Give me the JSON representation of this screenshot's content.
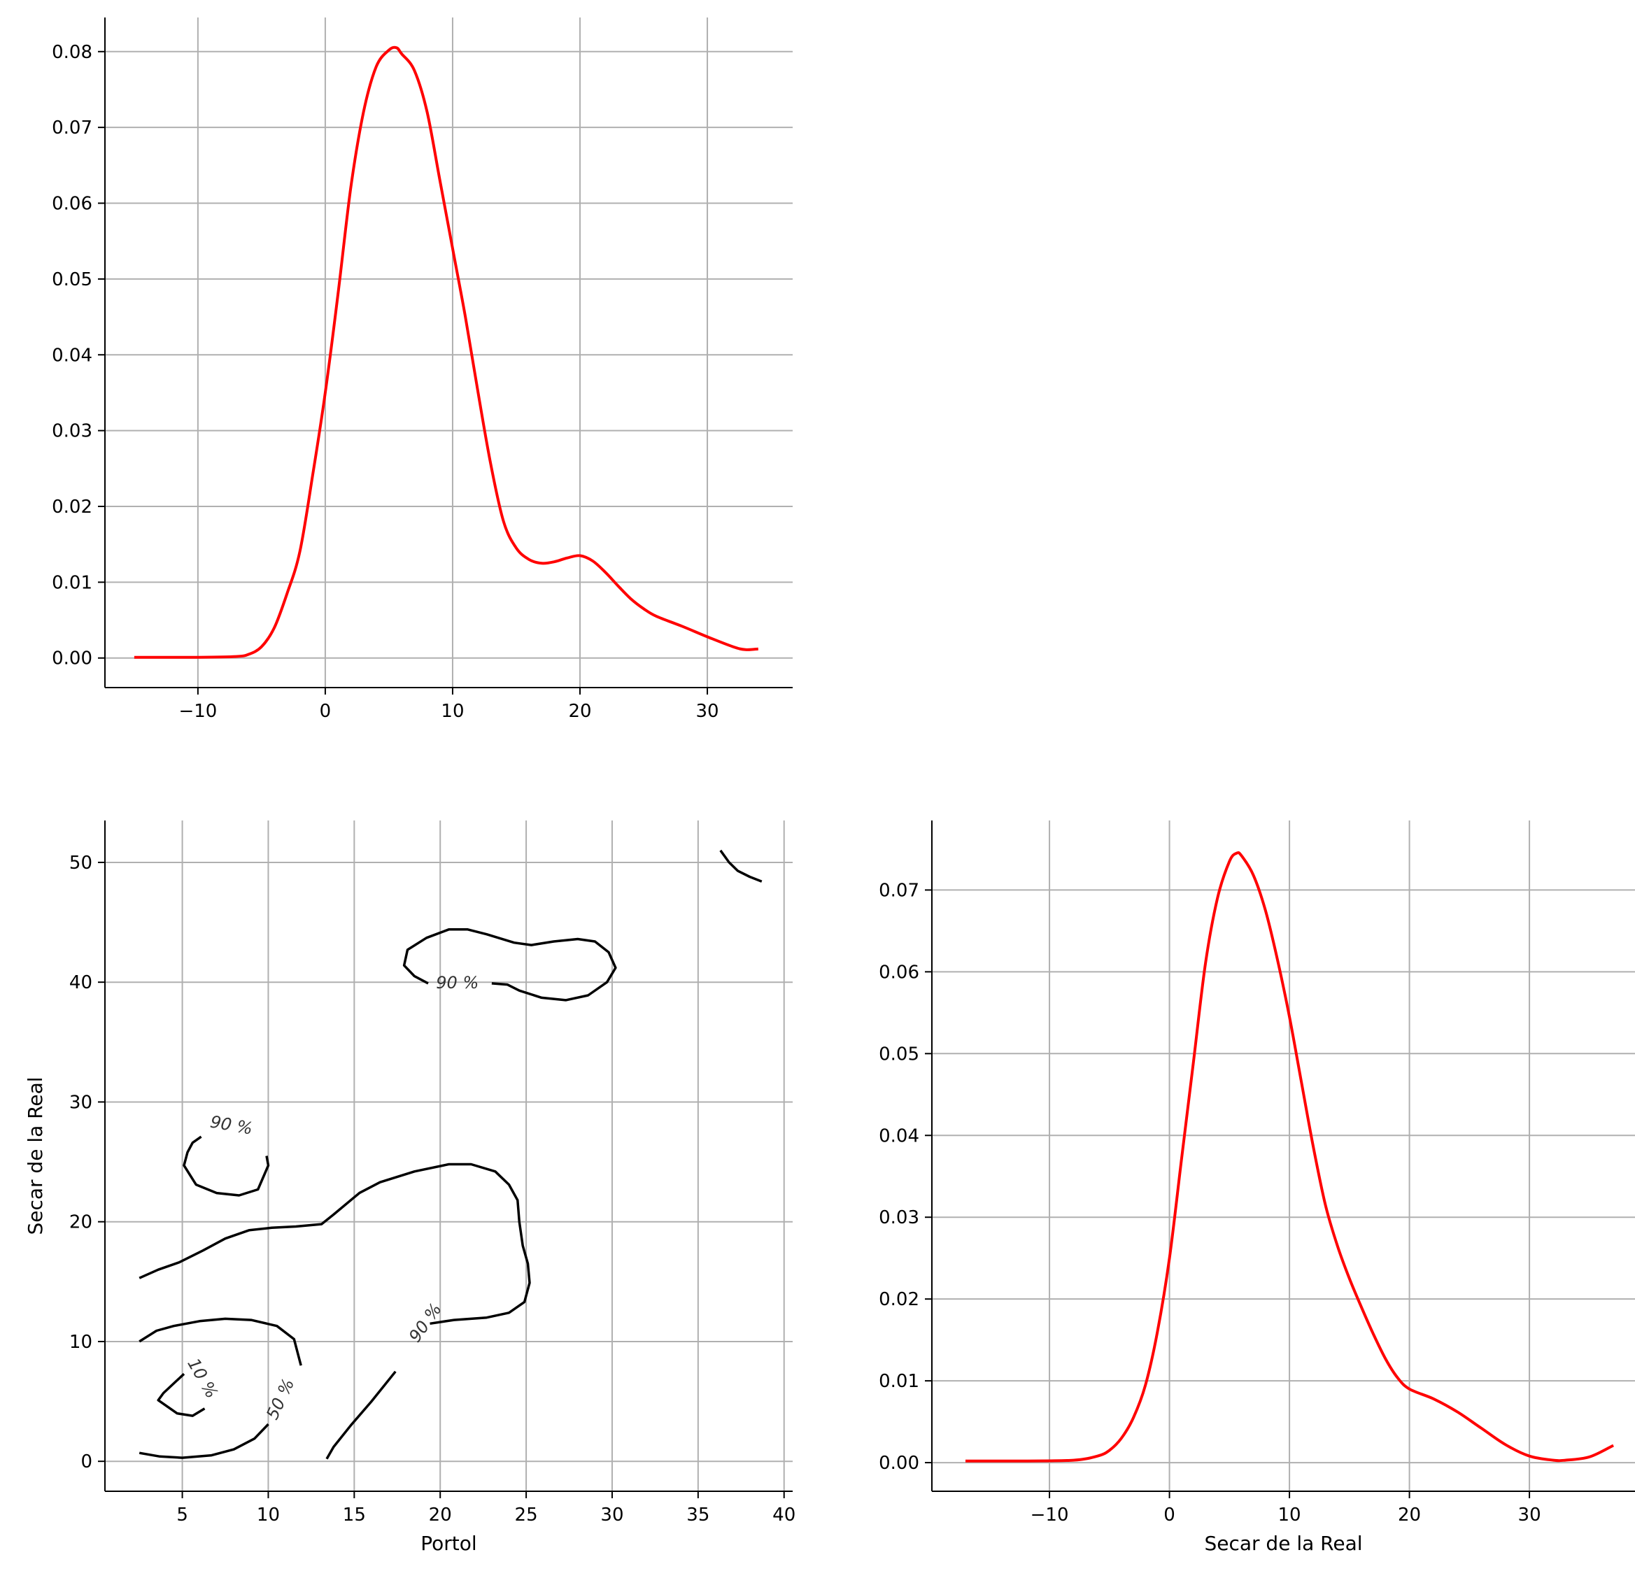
{
  "chart_data": [
    {
      "id": "top_left",
      "type": "line",
      "xlabel": "",
      "ylabel": "",
      "xlim": [
        -17.3,
        36.7
      ],
      "ylim": [
        -0.0039,
        0.0845
      ],
      "xticks": [
        -10,
        0,
        10,
        20,
        30
      ],
      "xtick_labels": [
        "−10",
        "0",
        "10",
        "20",
        "30"
      ],
      "yticks": [
        0.0,
        0.01,
        0.02,
        0.03,
        0.04,
        0.05,
        0.06,
        0.07,
        0.08
      ],
      "ytick_labels": [
        "0.00",
        "0.01",
        "0.02",
        "0.03",
        "0.04",
        "0.05",
        "0.06",
        "0.07",
        "0.08"
      ],
      "grid": true,
      "series_color": "#ff0000",
      "series": [
        {
          "x": [
            -15,
            -10,
            -7,
            -6,
            -5,
            -4,
            -3,
            -2,
            -1,
            0,
            1,
            2,
            3,
            4,
            5,
            5.6,
            6,
            7,
            8,
            9,
            10,
            11,
            12,
            13,
            14,
            15,
            16,
            17,
            18,
            19,
            20,
            21,
            22,
            23,
            24,
            25,
            26,
            28,
            30,
            32,
            33,
            34
          ],
          "y": [
            0.0001,
            0.0001,
            0.0002,
            0.0005,
            0.0015,
            0.004,
            0.0085,
            0.014,
            0.024,
            0.035,
            0.048,
            0.062,
            0.072,
            0.078,
            0.0802,
            0.0805,
            0.0797,
            0.0775,
            0.072,
            0.063,
            0.054,
            0.045,
            0.035,
            0.0255,
            0.018,
            0.0145,
            0.013,
            0.0125,
            0.0127,
            0.0132,
            0.0135,
            0.0128,
            0.0113,
            0.0095,
            0.0078,
            0.0065,
            0.0055,
            0.0042,
            0.0028,
            0.0015,
            0.0011,
            0.0012
          ]
        }
      ]
    },
    {
      "id": "bottom_left",
      "type": "contour",
      "xlabel": "Portol",
      "ylabel": "Secar de la Real",
      "xlim": [
        0.5,
        40.5
      ],
      "ylim": [
        -2.5,
        53.5
      ],
      "xticks": [
        5,
        10,
        15,
        20,
        25,
        30,
        35,
        40
      ],
      "xtick_labels": [
        "5",
        "10",
        "15",
        "20",
        "25",
        "30",
        "35",
        "40"
      ],
      "yticks": [
        0,
        10,
        20,
        30,
        40,
        50
      ],
      "ytick_labels": [
        "0",
        "10",
        "20",
        "30",
        "40",
        "50"
      ],
      "grid": true,
      "series_color": "#000000",
      "contours": [
        {
          "level": "90 %",
          "points": [
            [
              19.3,
              39.9
            ],
            [
              18.5,
              40.5
            ],
            [
              17.9,
              41.4
            ],
            [
              18.1,
              42.7
            ],
            [
              19.2,
              43.7
            ],
            [
              20.5,
              44.4
            ],
            [
              21.6,
              44.4
            ],
            [
              22.7,
              44.0
            ],
            [
              24.3,
              43.3
            ],
            [
              25.3,
              43.1
            ],
            [
              26.6,
              43.4
            ],
            [
              28.0,
              43.6
            ],
            [
              29.0,
              43.4
            ],
            [
              29.8,
              42.5
            ],
            [
              30.2,
              41.2
            ],
            [
              29.7,
              40.0
            ],
            [
              28.6,
              38.9
            ],
            [
              27.3,
              38.5
            ],
            [
              25.9,
              38.7
            ],
            [
              24.6,
              39.3
            ],
            [
              23.9,
              39.8
            ],
            [
              23.0,
              39.9
            ]
          ]
        },
        {
          "level": "90 %",
          "label_pos": [
            19.4,
            11.3
          ],
          "points": [
            [
              19.4,
              11.5
            ],
            [
              20.8,
              11.8
            ],
            [
              22.7,
              12.0
            ],
            [
              24.0,
              12.4
            ],
            [
              24.9,
              13.3
            ],
            [
              25.2,
              14.9
            ],
            [
              25.1,
              16.5
            ],
            [
              24.8,
              18.0
            ],
            [
              24.6,
              20.0
            ],
            [
              24.5,
              21.8
            ],
            [
              24.0,
              23.1
            ],
            [
              23.2,
              24.2
            ],
            [
              21.8,
              24.8
            ],
            [
              20.5,
              24.8
            ],
            [
              18.5,
              24.2
            ],
            [
              16.5,
              23.3
            ],
            [
              15.3,
              22.4
            ],
            [
              13.8,
              20.6
            ],
            [
              13.1,
              19.8
            ],
            [
              11.6,
              19.6
            ],
            [
              10.2,
              19.5
            ],
            [
              8.9,
              19.3
            ],
            [
              7.5,
              18.6
            ],
            [
              6.2,
              17.6
            ],
            [
              4.8,
              16.6
            ],
            [
              3.6,
              16.0
            ],
            [
              2.5,
              15.3
            ]
          ]
        },
        {
          "level": "90 %",
          "points": [
            [
              17.4,
              7.5
            ],
            [
              16.0,
              5.0
            ],
            [
              14.8,
              3.0
            ],
            [
              13.8,
              1.2
            ],
            [
              13.4,
              0.2
            ]
          ]
        },
        {
          "level": "90 %",
          "label_pos": [
            7.8,
            27.6
          ],
          "points": [
            [
              6.1,
              27.1
            ],
            [
              5.6,
              26.6
            ],
            [
              5.3,
              25.8
            ],
            [
              5.1,
              24.7
            ],
            [
              5.8,
              23.1
            ],
            [
              7.0,
              22.4
            ],
            [
              8.3,
              22.2
            ],
            [
              9.4,
              22.7
            ],
            [
              10.0,
              24.7
            ],
            [
              9.9,
              25.5
            ]
          ]
        },
        {
          "level": "90 %",
          "points": [
            [
              36.3,
              51.0
            ],
            [
              36.8,
              50.0
            ],
            [
              37.3,
              49.3
            ],
            [
              38.0,
              48.8
            ],
            [
              38.7,
              48.4
            ]
          ]
        },
        {
          "level": "50 %",
          "label_pos": [
            11.0,
            5.0
          ],
          "points": [
            [
              2.5,
              10.0
            ],
            [
              3.5,
              10.9
            ],
            [
              4.5,
              11.3
            ],
            [
              6.0,
              11.7
            ],
            [
              7.5,
              11.9
            ],
            [
              9.0,
              11.8
            ],
            [
              10.5,
              11.3
            ],
            [
              11.5,
              10.2
            ],
            [
              11.9,
              8.0
            ]
          ]
        },
        {
          "level": "50 %",
          "points": [
            [
              2.5,
              0.7
            ],
            [
              3.7,
              0.4
            ],
            [
              5.0,
              0.3
            ],
            [
              6.7,
              0.5
            ],
            [
              8.0,
              1.0
            ],
            [
              9.2,
              1.9
            ],
            [
              10.0,
              3.1
            ]
          ]
        },
        {
          "level": "10 %",
          "label_pos": [
            5.9,
            6.7
          ],
          "points": [
            [
              5.1,
              7.3
            ],
            [
              4.5,
              6.5
            ],
            [
              3.9,
              5.7
            ],
            [
              3.6,
              5.1
            ],
            [
              4.7,
              4.0
            ],
            [
              5.6,
              3.8
            ],
            [
              6.3,
              4.4
            ]
          ]
        }
      ]
    },
    {
      "id": "bottom_right",
      "type": "line",
      "xlabel": "Secar de la Real",
      "ylabel": "",
      "xlim": [
        -19.8,
        38.8
      ],
      "ylim": [
        -0.0035,
        0.0785
      ],
      "xticks": [
        -10,
        0,
        10,
        20,
        30
      ],
      "xtick_labels": [
        "−10",
        "0",
        "10",
        "20",
        "30"
      ],
      "yticks": [
        0.0,
        0.01,
        0.02,
        0.03,
        0.04,
        0.05,
        0.06,
        0.07
      ],
      "ytick_labels": [
        "0.00",
        "0.01",
        "0.02",
        "0.03",
        "0.04",
        "0.05",
        "0.06",
        "0.07"
      ],
      "grid": true,
      "series_color": "#ff0000",
      "series": [
        {
          "x": [
            -17,
            -12,
            -8,
            -6,
            -5,
            -4,
            -3,
            -2,
            -1,
            0,
            1,
            2,
            3,
            4,
            5,
            5.6,
            6,
            7,
            8,
            9,
            10,
            11,
            12,
            13,
            14,
            15,
            16,
            17,
            18,
            19,
            20,
            22,
            24,
            26,
            28,
            30,
            32,
            33,
            35,
            37
          ],
          "y": [
            0.0002,
            0.0002,
            0.0003,
            0.0008,
            0.0015,
            0.003,
            0.0055,
            0.0095,
            0.016,
            0.025,
            0.037,
            0.049,
            0.061,
            0.069,
            0.0735,
            0.0745,
            0.0742,
            0.0718,
            0.0675,
            0.0615,
            0.0545,
            0.0465,
            0.0385,
            0.0315,
            0.0265,
            0.0225,
            0.019,
            0.0157,
            0.0127,
            0.0104,
            0.009,
            0.0078,
            0.0062,
            0.0042,
            0.0022,
            0.0008,
            0.0003,
            0.0003,
            0.0007,
            0.0021
          ]
        }
      ]
    }
  ]
}
